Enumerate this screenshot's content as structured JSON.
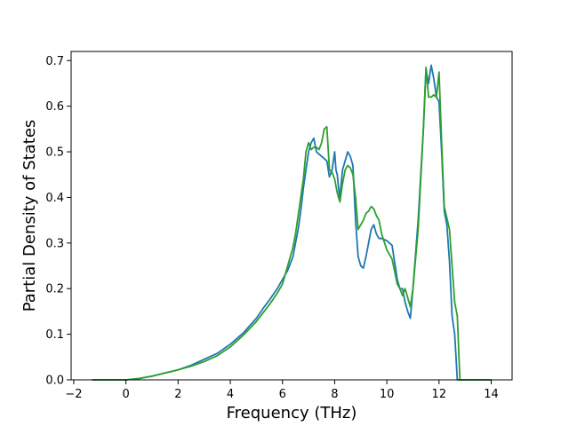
{
  "chart_data": {
    "type": "line",
    "title": "",
    "xlabel": "Frequency (THz)",
    "ylabel": "Partial Density of States",
    "xlim": [
      -2.1,
      14.8
    ],
    "ylim": [
      0,
      0.72
    ],
    "xticks": [
      -2,
      0,
      2,
      4,
      6,
      8,
      10,
      12,
      14
    ],
    "yticks": [
      0.0,
      0.1,
      0.2,
      0.3,
      0.4,
      0.5,
      0.6,
      0.7
    ],
    "xtick_labels": [
      "−2",
      "0",
      "2",
      "4",
      "6",
      "8",
      "10",
      "12",
      "14"
    ],
    "ytick_labels": [
      "0.0",
      "0.1",
      "0.2",
      "0.3",
      "0.4",
      "0.5",
      "0.6",
      "0.7"
    ],
    "grid": false,
    "legend": false,
    "series": [
      {
        "color": "#1f77b4",
        "x": [
          -1.3,
          0.0,
          0.5,
          1.0,
          1.5,
          2.0,
          2.5,
          3.0,
          3.5,
          4.0,
          4.5,
          5.0,
          5.3,
          5.5,
          5.8,
          6.0,
          6.2,
          6.4,
          6.5,
          6.6,
          6.7,
          6.8,
          6.9,
          7.0,
          7.1,
          7.2,
          7.3,
          7.5,
          7.7,
          7.8,
          7.9,
          8.0,
          8.05,
          8.1,
          8.15,
          8.2,
          8.3,
          8.4,
          8.5,
          8.6,
          8.7,
          8.8,
          8.9,
          9.0,
          9.1,
          9.2,
          9.3,
          9.4,
          9.5,
          9.6,
          9.7,
          9.8,
          10.0,
          10.2,
          10.4,
          10.5,
          10.6,
          10.7,
          10.8,
          10.9,
          11.0,
          11.2,
          11.4,
          11.5,
          11.6,
          11.7,
          11.8,
          11.9,
          12.0,
          12.1,
          12.2,
          12.3,
          12.4,
          12.5,
          12.6,
          12.7,
          12.8,
          13.0,
          14.0
        ],
        "values": [
          0.0,
          0.0,
          0.003,
          0.008,
          0.015,
          0.022,
          0.032,
          0.045,
          0.058,
          0.078,
          0.103,
          0.135,
          0.16,
          0.175,
          0.2,
          0.22,
          0.24,
          0.27,
          0.3,
          0.33,
          0.37,
          0.42,
          0.46,
          0.5,
          0.52,
          0.53,
          0.5,
          0.49,
          0.48,
          0.445,
          0.46,
          0.5,
          0.46,
          0.45,
          0.42,
          0.4,
          0.46,
          0.48,
          0.5,
          0.49,
          0.47,
          0.35,
          0.27,
          0.25,
          0.245,
          0.27,
          0.3,
          0.33,
          0.34,
          0.32,
          0.31,
          0.31,
          0.305,
          0.295,
          0.22,
          0.2,
          0.2,
          0.17,
          0.15,
          0.135,
          0.2,
          0.35,
          0.55,
          0.68,
          0.65,
          0.69,
          0.66,
          0.62,
          0.61,
          0.5,
          0.37,
          0.34,
          0.26,
          0.14,
          0.1,
          0.0,
          0.0,
          0.0,
          0.0
        ]
      },
      {
        "color": "#2ca02c",
        "x": [
          -1.3,
          0.0,
          0.5,
          1.0,
          1.5,
          2.0,
          2.5,
          3.0,
          3.5,
          4.0,
          4.5,
          5.0,
          5.5,
          5.8,
          6.0,
          6.2,
          6.4,
          6.5,
          6.6,
          6.7,
          6.8,
          6.9,
          7.0,
          7.1,
          7.2,
          7.3,
          7.4,
          7.5,
          7.6,
          7.7,
          7.8,
          7.9,
          8.0,
          8.1,
          8.2,
          8.3,
          8.4,
          8.5,
          8.6,
          8.7,
          8.8,
          8.9,
          9.0,
          9.1,
          9.2,
          9.3,
          9.4,
          9.5,
          9.6,
          9.7,
          9.8,
          10.0,
          10.2,
          10.4,
          10.5,
          10.6,
          10.7,
          10.8,
          10.9,
          11.0,
          11.2,
          11.4,
          11.5,
          11.6,
          11.7,
          11.8,
          11.9,
          12.0,
          12.1,
          12.2,
          12.3,
          12.4,
          12.5,
          12.6,
          12.7,
          12.8,
          13.0,
          14.0
        ],
        "values": [
          0.0,
          0.0,
          0.003,
          0.008,
          0.015,
          0.022,
          0.03,
          0.04,
          0.053,
          0.072,
          0.098,
          0.128,
          0.165,
          0.19,
          0.21,
          0.25,
          0.29,
          0.32,
          0.36,
          0.4,
          0.44,
          0.5,
          0.52,
          0.505,
          0.51,
          0.51,
          0.505,
          0.52,
          0.55,
          0.555,
          0.46,
          0.455,
          0.44,
          0.41,
          0.39,
          0.43,
          0.46,
          0.47,
          0.465,
          0.45,
          0.4,
          0.33,
          0.34,
          0.35,
          0.365,
          0.37,
          0.38,
          0.375,
          0.36,
          0.35,
          0.32,
          0.285,
          0.265,
          0.21,
          0.2,
          0.185,
          0.2,
          0.18,
          0.16,
          0.2,
          0.33,
          0.55,
          0.685,
          0.62,
          0.62,
          0.625,
          0.62,
          0.675,
          0.52,
          0.38,
          0.355,
          0.33,
          0.25,
          0.17,
          0.14,
          0.0,
          0.0,
          0.0
        ]
      }
    ]
  }
}
